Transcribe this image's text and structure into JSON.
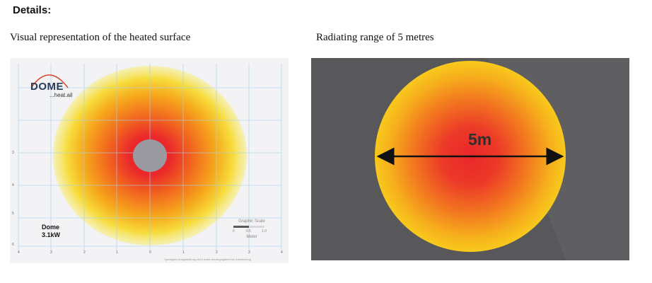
{
  "heading": "Details:",
  "left_caption": "Visual representation of the heated surface",
  "right_caption": "Radiating range of 5 metres",
  "left_figure": {
    "logo_text": "DOME",
    "logo_sub": "...heat.ail",
    "product_name": "Dome",
    "power": "3.1kW",
    "scale_title": "Graphic Scale",
    "scale_ticks": [
      "0",
      "0.5",
      "1.0"
    ],
    "scale_unit": "Meter",
    "x_ticks": [
      "4",
      "3",
      "2",
      "1",
      "0",
      "1",
      "2",
      "3",
      "4"
    ],
    "y_ticks": [
      "3",
      "4",
      "5",
      "6"
    ],
    "footnote": "*gezeigten Ausgestaltung nicht exakt wiedergegeben bei Abweichung",
    "colors": {
      "outer": "#f7e85a",
      "mid": "#f6a11c",
      "inner": "#ea2a2a",
      "center": "#9a9aa0",
      "grid": "#a8d2ea"
    }
  },
  "right_figure": {
    "diameter_label": "5m",
    "colors": {
      "background": "#58585b",
      "outer": "#f7c31c",
      "inner": "#e9262a",
      "arrow": "#111111"
    }
  }
}
